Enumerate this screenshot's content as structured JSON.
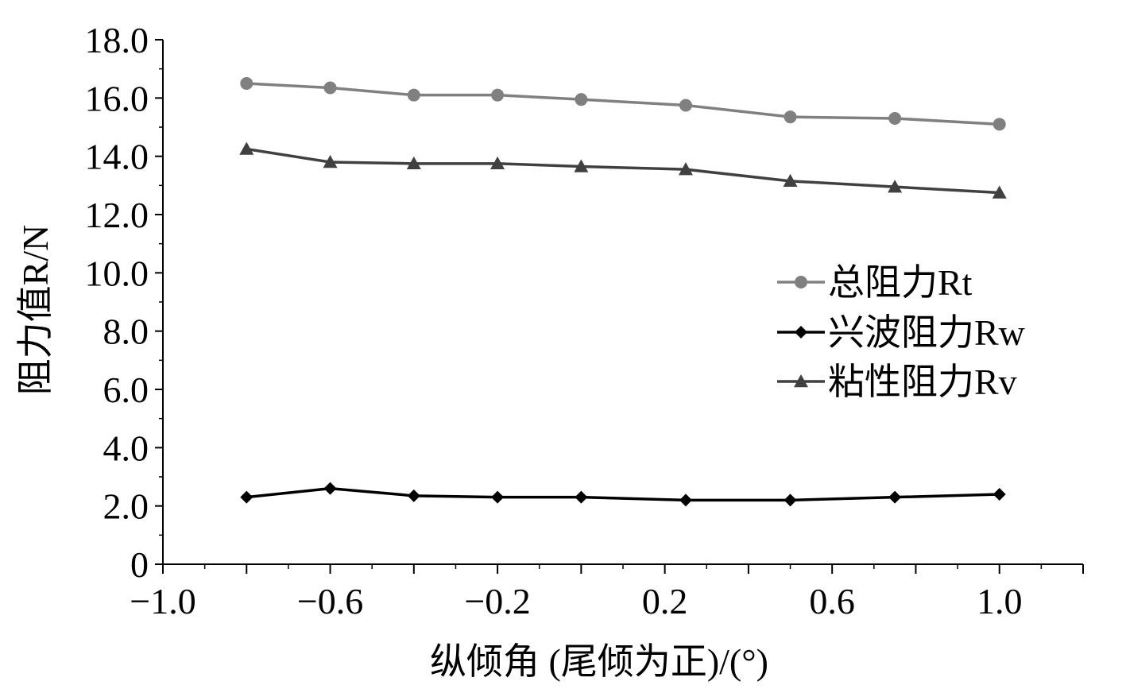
{
  "chart_data": {
    "type": "line",
    "xlabel": "纵倾角 (尾倾为正)/(°)",
    "ylabel": "阻力值R/N",
    "xlim": [
      -1.0,
      1.2
    ],
    "ylim": [
      0,
      18.0
    ],
    "x_ticks": [
      "-1.0",
      "-0.6",
      "-0.2",
      "0.2",
      "0.6",
      "1.0"
    ],
    "x_tick_values": [
      -1.0,
      -0.6,
      -0.2,
      0.2,
      0.6,
      1.0
    ],
    "y_ticks": [
      "0",
      "2.0",
      "4.0",
      "6.0",
      "8.0",
      "10.0",
      "12.0",
      "14.0",
      "16.0",
      "18.0"
    ],
    "y_tick_values": [
      0,
      2,
      4,
      6,
      8,
      10,
      12,
      14,
      16,
      18
    ],
    "grid": false,
    "legend_position": "right-middle",
    "series": [
      {
        "name": "总阻力Rt",
        "marker": "circle",
        "color": "#808080",
        "x": [
          -0.8,
          -0.6,
          -0.4,
          -0.2,
          0.0,
          0.25,
          0.5,
          0.75,
          1.0
        ],
        "values": [
          16.5,
          16.35,
          16.1,
          16.1,
          15.95,
          15.75,
          15.35,
          15.3,
          15.1
        ]
      },
      {
        "name": "兴波阻力Rw",
        "marker": "diamond",
        "color": "#000000",
        "x": [
          -0.8,
          -0.6,
          -0.4,
          -0.2,
          0.0,
          0.25,
          0.5,
          0.75,
          1.0
        ],
        "values": [
          2.3,
          2.6,
          2.35,
          2.3,
          2.3,
          2.2,
          2.2,
          2.3,
          2.4
        ]
      },
      {
        "name": "粘性阻力Rv",
        "marker": "triangle",
        "color": "#404040",
        "x": [
          -0.8,
          -0.6,
          -0.4,
          -0.2,
          0.0,
          0.25,
          0.5,
          0.75,
          1.0
        ],
        "values": [
          14.25,
          13.8,
          13.75,
          13.75,
          13.65,
          13.55,
          13.15,
          12.95,
          12.75
        ]
      }
    ]
  }
}
